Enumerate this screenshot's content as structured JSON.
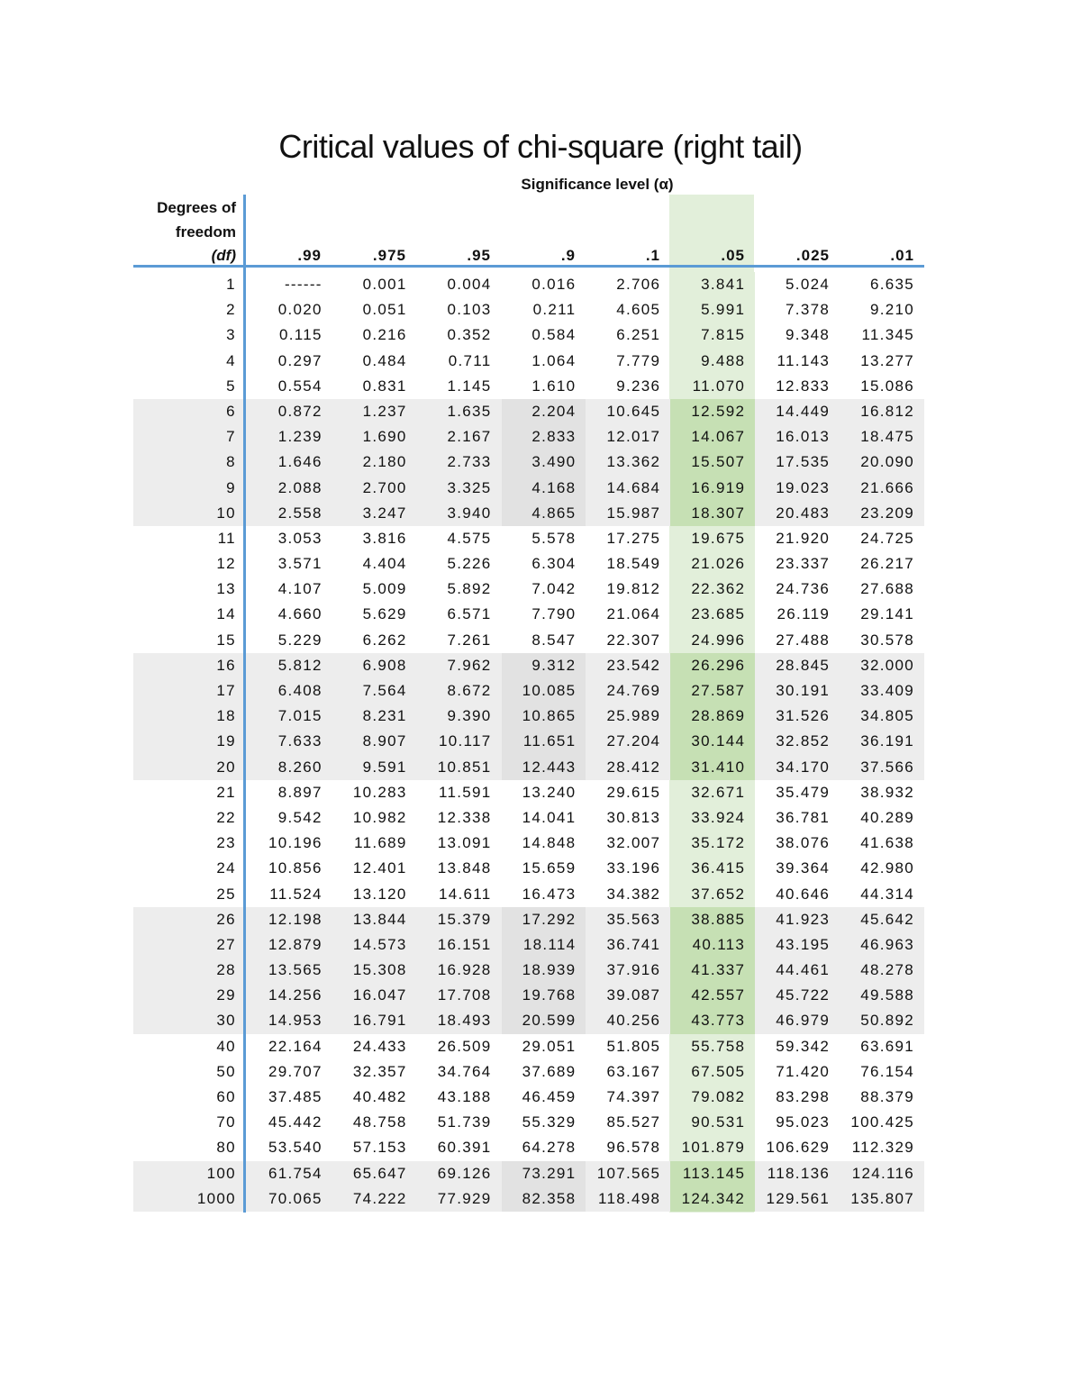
{
  "title": "Critical values of chi-square (right tail)",
  "significance_label": "Significance level (α)",
  "df_header": [
    "Degrees of",
    "freedom",
    "(df)"
  ],
  "columns": [
    ".99",
    ".975",
    ".95",
    ".9",
    ".1",
    ".05",
    ".025",
    ".01"
  ],
  "highlight_column": ".05",
  "colors": {
    "rule": "#5b9bd5",
    "band_gray": "#ededed",
    "highlight_green": "#e2efda",
    "highlight_green_band": "#c6e0b4"
  },
  "rows": [
    {
      "df": "1",
      "values": [
        "------",
        "0.001",
        "0.004",
        "0.016",
        "2.706",
        "3.841",
        "5.024",
        "6.635"
      ]
    },
    {
      "df": "2",
      "values": [
        "0.020",
        "0.051",
        "0.103",
        "0.211",
        "4.605",
        "5.991",
        "7.378",
        "9.210"
      ]
    },
    {
      "df": "3",
      "values": [
        "0.115",
        "0.216",
        "0.352",
        "0.584",
        "6.251",
        "7.815",
        "9.348",
        "11.345"
      ]
    },
    {
      "df": "4",
      "values": [
        "0.297",
        "0.484",
        "0.711",
        "1.064",
        "7.779",
        "9.488",
        "11.143",
        "13.277"
      ]
    },
    {
      "df": "5",
      "values": [
        "0.554",
        "0.831",
        "1.145",
        "1.610",
        "9.236",
        "11.070",
        "12.833",
        "15.086"
      ]
    },
    {
      "df": "6",
      "shaded": true,
      "values": [
        "0.872",
        "1.237",
        "1.635",
        "2.204",
        "10.645",
        "12.592",
        "14.449",
        "16.812"
      ]
    },
    {
      "df": "7",
      "shaded": true,
      "values": [
        "1.239",
        "1.690",
        "2.167",
        "2.833",
        "12.017",
        "14.067",
        "16.013",
        "18.475"
      ]
    },
    {
      "df": "8",
      "shaded": true,
      "values": [
        "1.646",
        "2.180",
        "2.733",
        "3.490",
        "13.362",
        "15.507",
        "17.535",
        "20.090"
      ]
    },
    {
      "df": "9",
      "shaded": true,
      "values": [
        "2.088",
        "2.700",
        "3.325",
        "4.168",
        "14.684",
        "16.919",
        "19.023",
        "21.666"
      ]
    },
    {
      "df": "10",
      "shaded": true,
      "values": [
        "2.558",
        "3.247",
        "3.940",
        "4.865",
        "15.987",
        "18.307",
        "20.483",
        "23.209"
      ]
    },
    {
      "df": "11",
      "values": [
        "3.053",
        "3.816",
        "4.575",
        "5.578",
        "17.275",
        "19.675",
        "21.920",
        "24.725"
      ]
    },
    {
      "df": "12",
      "values": [
        "3.571",
        "4.404",
        "5.226",
        "6.304",
        "18.549",
        "21.026",
        "23.337",
        "26.217"
      ]
    },
    {
      "df": "13",
      "values": [
        "4.107",
        "5.009",
        "5.892",
        "7.042",
        "19.812",
        "22.362",
        "24.736",
        "27.688"
      ]
    },
    {
      "df": "14",
      "values": [
        "4.660",
        "5.629",
        "6.571",
        "7.790",
        "21.064",
        "23.685",
        "26.119",
        "29.141"
      ]
    },
    {
      "df": "15",
      "values": [
        "5.229",
        "6.262",
        "7.261",
        "8.547",
        "22.307",
        "24.996",
        "27.488",
        "30.578"
      ]
    },
    {
      "df": "16",
      "shaded": true,
      "values": [
        "5.812",
        "6.908",
        "7.962",
        "9.312",
        "23.542",
        "26.296",
        "28.845",
        "32.000"
      ]
    },
    {
      "df": "17",
      "shaded": true,
      "values": [
        "6.408",
        "7.564",
        "8.672",
        "10.085",
        "24.769",
        "27.587",
        "30.191",
        "33.409"
      ]
    },
    {
      "df": "18",
      "shaded": true,
      "values": [
        "7.015",
        "8.231",
        "9.390",
        "10.865",
        "25.989",
        "28.869",
        "31.526",
        "34.805"
      ]
    },
    {
      "df": "19",
      "shaded": true,
      "values": [
        "7.633",
        "8.907",
        "10.117",
        "11.651",
        "27.204",
        "30.144",
        "32.852",
        "36.191"
      ]
    },
    {
      "df": "20",
      "shaded": true,
      "values": [
        "8.260",
        "9.591",
        "10.851",
        "12.443",
        "28.412",
        "31.410",
        "34.170",
        "37.566"
      ]
    },
    {
      "df": "21",
      "values": [
        "8.897",
        "10.283",
        "11.591",
        "13.240",
        "29.615",
        "32.671",
        "35.479",
        "38.932"
      ]
    },
    {
      "df": "22",
      "values": [
        "9.542",
        "10.982",
        "12.338",
        "14.041",
        "30.813",
        "33.924",
        "36.781",
        "40.289"
      ]
    },
    {
      "df": "23",
      "values": [
        "10.196",
        "11.689",
        "13.091",
        "14.848",
        "32.007",
        "35.172",
        "38.076",
        "41.638"
      ]
    },
    {
      "df": "24",
      "values": [
        "10.856",
        "12.401",
        "13.848",
        "15.659",
        "33.196",
        "36.415",
        "39.364",
        "42.980"
      ]
    },
    {
      "df": "25",
      "values": [
        "11.524",
        "13.120",
        "14.611",
        "16.473",
        "34.382",
        "37.652",
        "40.646",
        "44.314"
      ]
    },
    {
      "df": "26",
      "shaded": true,
      "values": [
        "12.198",
        "13.844",
        "15.379",
        "17.292",
        "35.563",
        "38.885",
        "41.923",
        "45.642"
      ]
    },
    {
      "df": "27",
      "shaded": true,
      "values": [
        "12.879",
        "14.573",
        "16.151",
        "18.114",
        "36.741",
        "40.113",
        "43.195",
        "46.963"
      ]
    },
    {
      "df": "28",
      "shaded": true,
      "values": [
        "13.565",
        "15.308",
        "16.928",
        "18.939",
        "37.916",
        "41.337",
        "44.461",
        "48.278"
      ]
    },
    {
      "df": "29",
      "shaded": true,
      "values": [
        "14.256",
        "16.047",
        "17.708",
        "19.768",
        "39.087",
        "42.557",
        "45.722",
        "49.588"
      ]
    },
    {
      "df": "30",
      "shaded": true,
      "values": [
        "14.953",
        "16.791",
        "18.493",
        "20.599",
        "40.256",
        "43.773",
        "46.979",
        "50.892"
      ]
    },
    {
      "df": "40",
      "values": [
        "22.164",
        "24.433",
        "26.509",
        "29.051",
        "51.805",
        "55.758",
        "59.342",
        "63.691"
      ]
    },
    {
      "df": "50",
      "values": [
        "29.707",
        "32.357",
        "34.764",
        "37.689",
        "63.167",
        "67.505",
        "71.420",
        "76.154"
      ]
    },
    {
      "df": "60",
      "values": [
        "37.485",
        "40.482",
        "43.188",
        "46.459",
        "74.397",
        "79.082",
        "83.298",
        "88.379"
      ]
    },
    {
      "df": "70",
      "values": [
        "45.442",
        "48.758",
        "51.739",
        "55.329",
        "85.527",
        "90.531",
        "95.023",
        "100.425"
      ]
    },
    {
      "df": "80",
      "values": [
        "53.540",
        "57.153",
        "60.391",
        "64.278",
        "96.578",
        "101.879",
        "106.629",
        "112.329"
      ]
    },
    {
      "df": "100",
      "shaded": true,
      "values": [
        "61.754",
        "65.647",
        "69.126",
        "73.291",
        "107.565",
        "113.145",
        "118.136",
        "124.116"
      ]
    },
    {
      "df": "1000",
      "shaded": true,
      "values": [
        "70.065",
        "74.222",
        "77.929",
        "82.358",
        "118.498",
        "124.342",
        "129.561",
        "135.807"
      ]
    }
  ]
}
